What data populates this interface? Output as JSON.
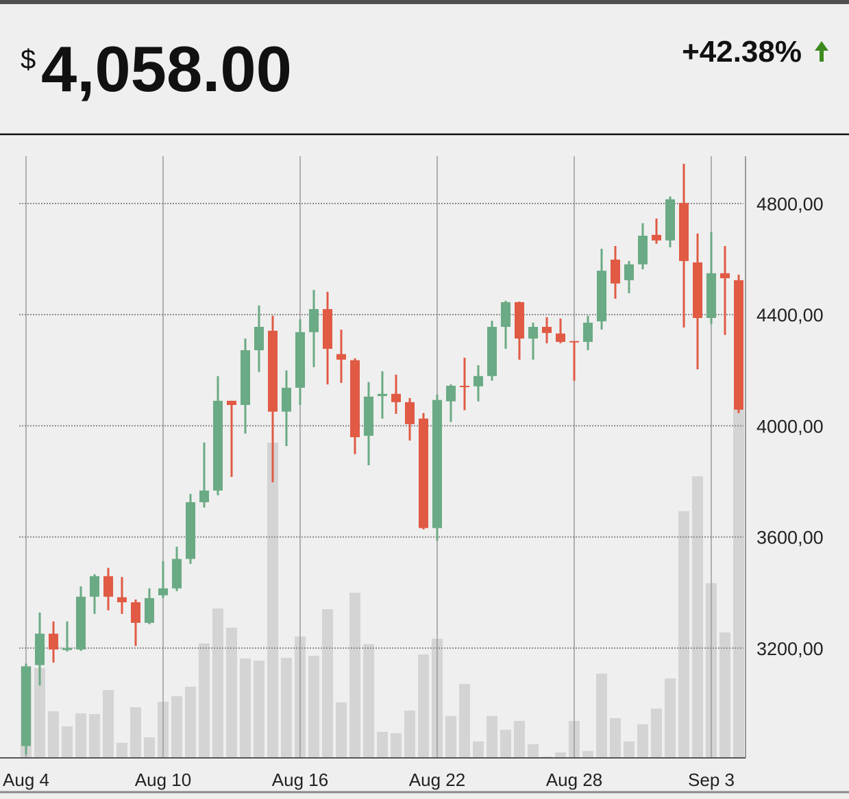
{
  "header": {
    "currency": "$",
    "price": "4,058.00",
    "change": "+42.38%"
  },
  "chart_data": {
    "type": "candlestick",
    "categories": [
      "Aug 4",
      null,
      null,
      null,
      null,
      null,
      null,
      null,
      null,
      null,
      "Aug 10",
      null,
      null,
      null,
      null,
      null,
      null,
      null,
      null,
      null,
      "Aug 16",
      null,
      null,
      null,
      null,
      null,
      null,
      null,
      null,
      null,
      "Aug 22",
      null,
      null,
      null,
      null,
      null,
      null,
      null,
      null,
      null,
      "Aug 28",
      null,
      null,
      null,
      null,
      null,
      null,
      null,
      null,
      null,
      "Sep 3",
      null,
      null
    ],
    "open": [
      2848,
      3139,
      3252,
      3193,
      3195,
      3385,
      3459,
      3383,
      3365,
      3291,
      3390,
      3415,
      3521,
      3725,
      3767,
      4090,
      4075,
      4272,
      4342,
      4051,
      4137,
      4337,
      4420,
      4258,
      4236,
      3964,
      4107,
      4115,
      4085,
      4026,
      3632,
      4088,
      4144,
      4142,
      4179,
      4356,
      4445,
      4314,
      4356,
      4332,
      4305,
      4302,
      4376,
      4598,
      4524,
      4581,
      4687,
      4667,
      4802,
      4588,
      4388,
      4549,
      4524
    ],
    "high": [
      3144,
      3328,
      3296,
      3296,
      3422,
      3466,
      3489,
      3456,
      3375,
      3415,
      3513,
      3565,
      3755,
      3940,
      4179,
      4090,
      4314,
      4433,
      4396,
      4199,
      4383,
      4489,
      4482,
      4346,
      4243,
      4157,
      4196,
      4184,
      4100,
      4046,
      4112,
      4149,
      4245,
      4218,
      4378,
      4450,
      4447,
      4371,
      4391,
      4386,
      4305,
      4396,
      4637,
      4647,
      4593,
      4729,
      4746,
      4825,
      4943,
      4692,
      4697,
      4647,
      4544
    ],
    "low": [
      2818,
      3065,
      3148,
      3188,
      3190,
      3323,
      3336,
      3323,
      3208,
      3286,
      3380,
      3405,
      3503,
      3706,
      3750,
      3816,
      3972,
      4194,
      3797,
      3927,
      4075,
      4211,
      4149,
      4154,
      3898,
      3858,
      4026,
      4043,
      3947,
      3627,
      3587,
      4014,
      4056,
      4088,
      4162,
      4277,
      4238,
      4238,
      4297,
      4297,
      4162,
      4272,
      4346,
      4457,
      4477,
      4563,
      4655,
      4642,
      4354,
      4203,
      4366,
      4327,
      4046
    ],
    "close": [
      3134,
      3252,
      3195,
      3200,
      3385,
      3459,
      3385,
      3365,
      3291,
      3380,
      3415,
      3521,
      3725,
      3767,
      4090,
      4075,
      4272,
      4356,
      4051,
      4137,
      4337,
      4420,
      4277,
      4238,
      3959,
      4105,
      4115,
      4085,
      4006,
      3632,
      4093,
      4144,
      4140,
      4179,
      4356,
      4445,
      4314,
      4356,
      4334,
      4302,
      4300,
      4371,
      4558,
      4512,
      4581,
      4684,
      4667,
      4815,
      4593,
      4388,
      4549,
      4531,
      4058
    ],
    "volume": [
      134,
      131,
      68,
      46,
      65,
      64,
      99,
      22,
      74,
      30,
      82,
      90,
      104,
      167,
      218,
      190,
      145,
      142,
      460,
      146,
      177,
      149,
      217,
      81,
      241,
      166,
      38,
      36,
      69,
      151,
      174,
      61,
      108,
      24,
      61,
      41,
      54,
      20,
      2,
      8,
      54,
      10,
      123,
      58,
      24,
      49,
      72,
      116,
      360,
      411,
      255,
      183,
      508
    ],
    "volume_lim": [
      0,
      878
    ],
    "up_color": "#6aaa84",
    "down_color": "#e05a44",
    "volume_color": "#d4d4d4",
    "ylim": [
      2805,
      4970
    ],
    "yticks": [
      {
        "value": 3200,
        "label": "3200,00"
      },
      {
        "value": 3600,
        "label": "3600,00"
      },
      {
        "value": 4000,
        "label": "4000,00"
      },
      {
        "value": 4400,
        "label": "4400,00"
      },
      {
        "value": 4800,
        "label": "4800,00"
      }
    ],
    "grid": true
  }
}
